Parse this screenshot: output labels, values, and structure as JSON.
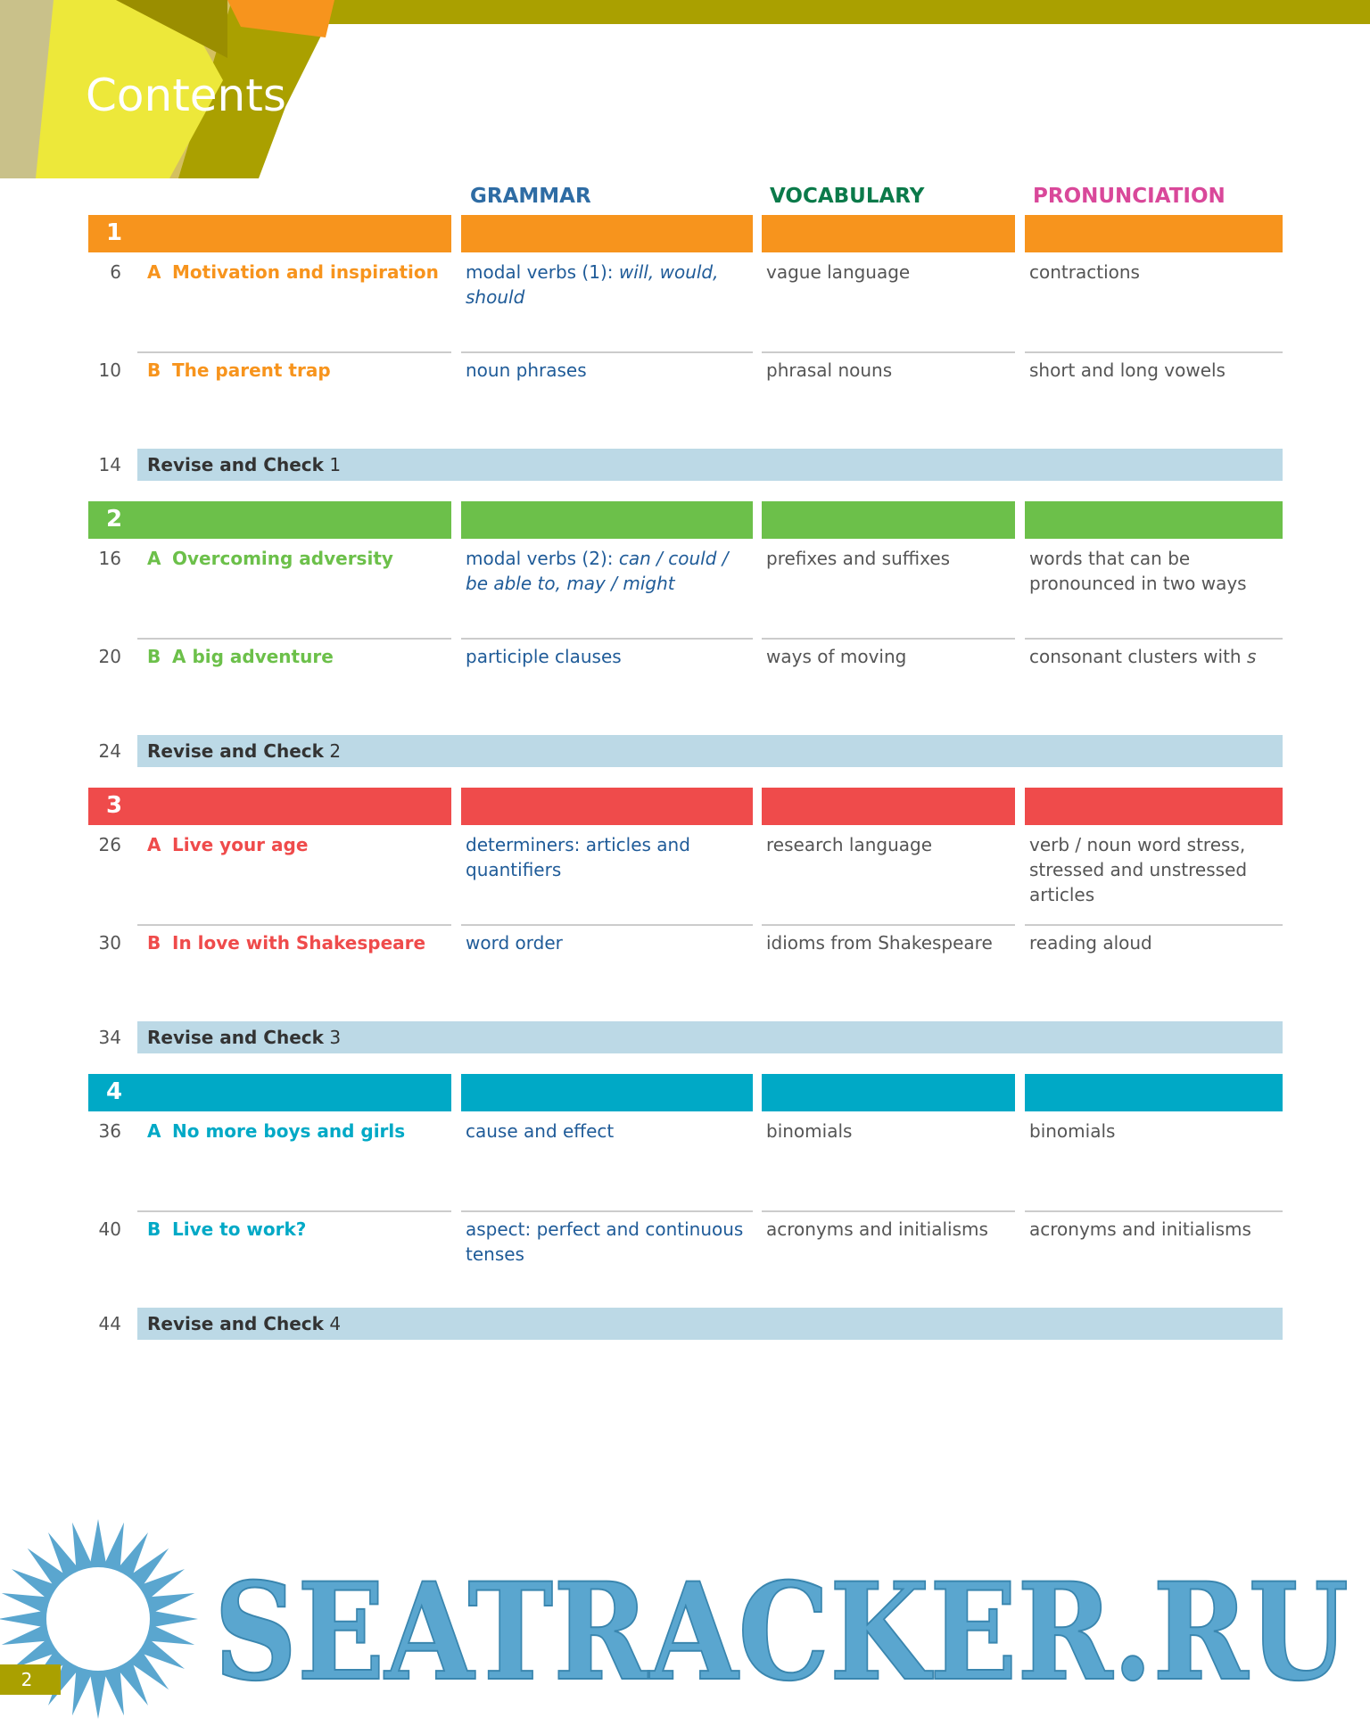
{
  "header": {
    "title": "Contents"
  },
  "columns": [
    "GRAMMAR",
    "VOCABULARY",
    "PRONUNCIATION"
  ],
  "units": [
    {
      "number": "1",
      "color": "#f7941d",
      "lessons": [
        {
          "page": "6",
          "letter": "A",
          "title": "Motivation and inspiration",
          "grammar": [
            {
              "text": "modal verbs (1): "
            },
            {
              "text": "will, would, should",
              "italic": true
            }
          ],
          "vocabulary": [
            {
              "text": "vague language"
            }
          ],
          "pronunciation": [
            {
              "text": "contractions"
            }
          ]
        },
        {
          "page": "10",
          "letter": "B",
          "title": "The parent trap",
          "grammar": [
            {
              "text": "noun phrases"
            }
          ],
          "vocabulary": [
            {
              "text": "phrasal nouns"
            }
          ],
          "pronunciation": [
            {
              "text": "short and long vowels"
            }
          ]
        }
      ],
      "revise": {
        "page": "14",
        "label": "Revise and Check",
        "number": "1"
      }
    },
    {
      "number": "2",
      "color": "#6cc04a",
      "lessons": [
        {
          "page": "16",
          "letter": "A",
          "title": "Overcoming adversity",
          "grammar": [
            {
              "text": "modal verbs (2): "
            },
            {
              "text": "can / could / be able to, may / might",
              "italic": true
            }
          ],
          "vocabulary": [
            {
              "text": "prefixes and suffixes"
            }
          ],
          "pronunciation": [
            {
              "text": "words that can be pronounced in two ways"
            }
          ]
        },
        {
          "page": "20",
          "letter": "B",
          "title": "A big adventure",
          "grammar": [
            {
              "text": "participle clauses"
            }
          ],
          "vocabulary": [
            {
              "text": "ways of moving"
            }
          ],
          "pronunciation": [
            {
              "text": "consonant clusters with "
            },
            {
              "text": "s",
              "italic": true
            }
          ]
        }
      ],
      "revise": {
        "page": "24",
        "label": "Revise and Check",
        "number": "2"
      }
    },
    {
      "number": "3",
      "color": "#ef4b4b",
      "lessons": [
        {
          "page": "26",
          "letter": "A",
          "title": "Live your age",
          "grammar": [
            {
              "text": "determiners: articles and quantifiers"
            }
          ],
          "vocabulary": [
            {
              "text": "research language"
            }
          ],
          "pronunciation": [
            {
              "text": "verb / noun word stress, stressed and unstressed articles"
            }
          ]
        },
        {
          "page": "30",
          "letter": "B",
          "title": "In love with Shakespeare",
          "grammar": [
            {
              "text": "word order"
            }
          ],
          "vocabulary": [
            {
              "text": "idioms from Shakespeare"
            }
          ],
          "pronunciation": [
            {
              "text": "reading aloud"
            }
          ]
        }
      ],
      "revise": {
        "page": "34",
        "label": "Revise and Check",
        "number": "3"
      }
    },
    {
      "number": "4",
      "color": "#00a9c6",
      "lessons": [
        {
          "page": "36",
          "letter": "A",
          "title": "No more boys and girls",
          "grammar": [
            {
              "text": "cause and effect"
            }
          ],
          "vocabulary": [
            {
              "text": "binomials"
            }
          ],
          "pronunciation": [
            {
              "text": "binomials"
            }
          ]
        },
        {
          "page": "40",
          "letter": "B",
          "title": "Live to work?",
          "grammar": [
            {
              "text": "aspect: perfect and continuous tenses"
            }
          ],
          "vocabulary": [
            {
              "text": "acronyms and initialisms"
            }
          ],
          "pronunciation": [
            {
              "text": "acronyms and initialisms"
            }
          ]
        }
      ],
      "revise": {
        "page": "44",
        "label": "Revise and Check",
        "number": "4"
      }
    }
  ],
  "footer": {
    "page_number": "2",
    "watermark": "SEATRACKER.RU"
  }
}
